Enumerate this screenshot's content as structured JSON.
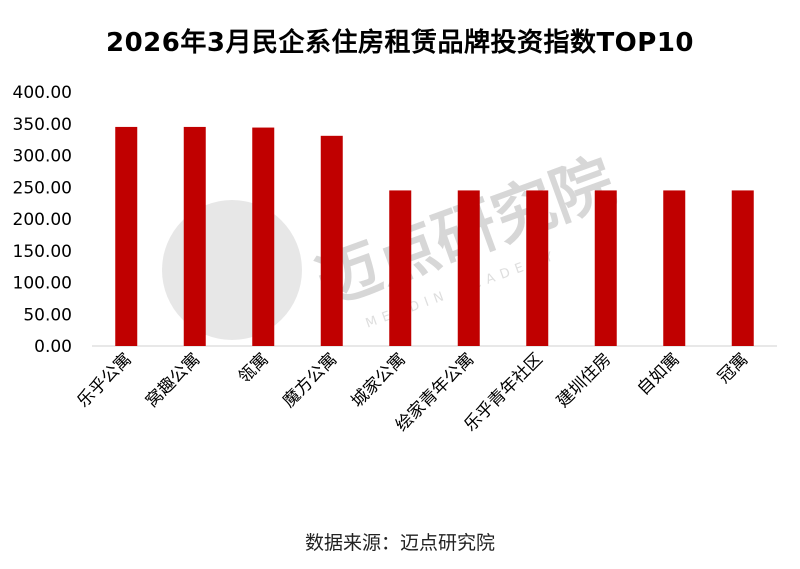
{
  "chart_data": {
    "type": "bar",
    "title": "2026年3月民企系住房租赁品牌投资指数TOP10",
    "categories": [
      "乐乎公寓",
      "窝趣公寓",
      "瓴寓",
      "魔方公寓",
      "城家公寓",
      "绘家青年公寓",
      "乐乎青年社区",
      "建圳住房",
      "自如寓",
      "冠寓"
    ],
    "values": [
      345,
      345,
      344,
      331,
      245,
      245,
      245,
      245,
      245,
      245
    ],
    "yticks": [
      "0.00",
      "50.00",
      "100.00",
      "150.00",
      "200.00",
      "250.00",
      "300.00",
      "350.00",
      "400.00"
    ],
    "ylim": [
      0,
      400
    ],
    "xlabel": "",
    "ylabel": "",
    "bar_color": "#c00000",
    "legend": "none",
    "grid": false
  },
  "source_text": "数据来源：迈点研究院",
  "watermark": {
    "text": "迈点研究院",
    "sub": "MEADIN ACADEMY",
    "color": "#c8c8c8"
  }
}
